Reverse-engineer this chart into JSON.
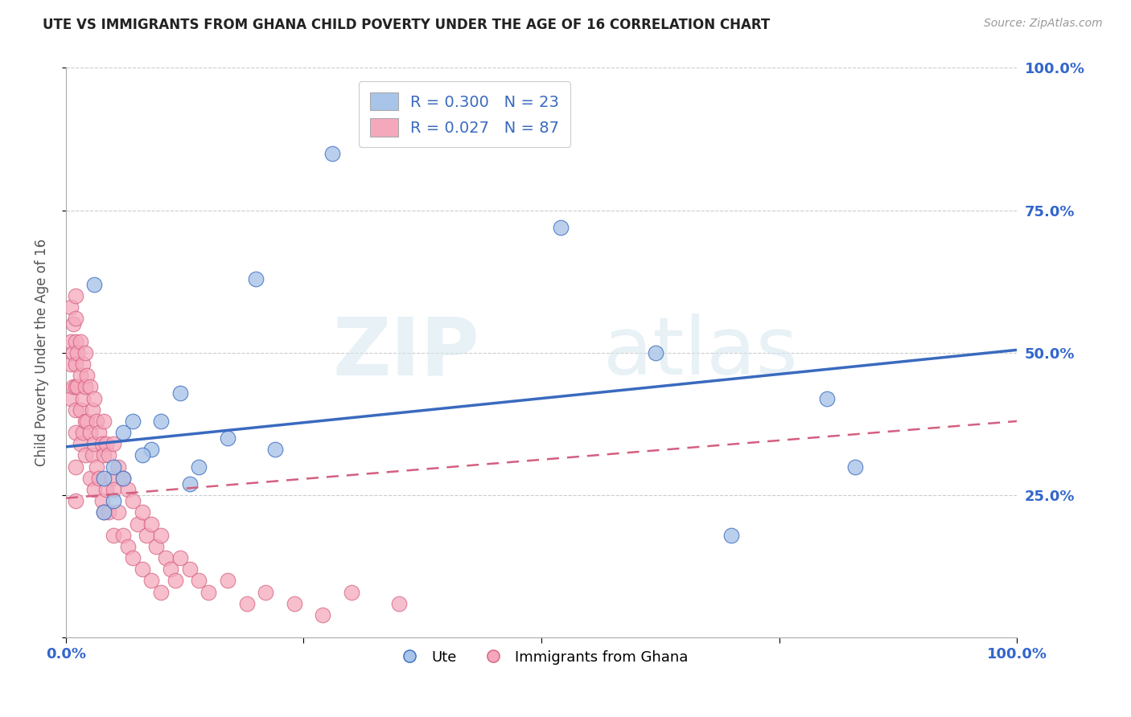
{
  "title": "UTE VS IMMIGRANTS FROM GHANA CHILD POVERTY UNDER THE AGE OF 16 CORRELATION CHART",
  "source": "Source: ZipAtlas.com",
  "ylabel": "Child Poverty Under the Age of 16",
  "watermark_zip": "ZIP",
  "watermark_atlas": "atlas",
  "legend_r1": "R = 0.300   N = 23",
  "legend_r2": "R = 0.027   N = 87",
  "ute_color": "#a8c4e8",
  "ghana_color": "#f5a8bc",
  "ute_line_color": "#3a6abf",
  "ghana_line_color": "#d45f80",
  "ute_scatter_x": [
    0.28,
    0.52,
    0.03,
    0.06,
    0.05,
    0.12,
    0.2,
    0.04,
    0.07,
    0.09,
    0.1,
    0.13,
    0.17,
    0.22,
    0.62,
    0.8,
    0.14,
    0.06,
    0.08,
    0.04,
    0.83,
    0.7,
    0.05
  ],
  "ute_scatter_y": [
    0.85,
    0.72,
    0.62,
    0.36,
    0.3,
    0.43,
    0.63,
    0.28,
    0.38,
    0.33,
    0.38,
    0.27,
    0.35,
    0.33,
    0.5,
    0.42,
    0.3,
    0.28,
    0.32,
    0.22,
    0.3,
    0.18,
    0.24
  ],
  "ghana_scatter_x": [
    0.005,
    0.005,
    0.005,
    0.005,
    0.008,
    0.008,
    0.008,
    0.01,
    0.01,
    0.01,
    0.01,
    0.01,
    0.01,
    0.01,
    0.01,
    0.01,
    0.012,
    0.012,
    0.015,
    0.015,
    0.015,
    0.015,
    0.018,
    0.018,
    0.018,
    0.02,
    0.02,
    0.02,
    0.02,
    0.022,
    0.022,
    0.025,
    0.025,
    0.025,
    0.028,
    0.028,
    0.03,
    0.03,
    0.03,
    0.032,
    0.032,
    0.035,
    0.035,
    0.038,
    0.038,
    0.04,
    0.04,
    0.04,
    0.042,
    0.042,
    0.045,
    0.045,
    0.048,
    0.05,
    0.05,
    0.05,
    0.055,
    0.055,
    0.06,
    0.06,
    0.065,
    0.065,
    0.07,
    0.07,
    0.075,
    0.08,
    0.08,
    0.085,
    0.09,
    0.09,
    0.095,
    0.1,
    0.1,
    0.105,
    0.11,
    0.115,
    0.12,
    0.13,
    0.14,
    0.15,
    0.17,
    0.19,
    0.21,
    0.24,
    0.27,
    0.3,
    0.35
  ],
  "ghana_scatter_y": [
    0.58,
    0.52,
    0.48,
    0.42,
    0.55,
    0.5,
    0.44,
    0.6,
    0.56,
    0.52,
    0.48,
    0.44,
    0.4,
    0.36,
    0.3,
    0.24,
    0.5,
    0.44,
    0.52,
    0.46,
    0.4,
    0.34,
    0.48,
    0.42,
    0.36,
    0.5,
    0.44,
    0.38,
    0.32,
    0.46,
    0.38,
    0.44,
    0.36,
    0.28,
    0.4,
    0.32,
    0.42,
    0.34,
    0.26,
    0.38,
    0.3,
    0.36,
    0.28,
    0.34,
    0.24,
    0.38,
    0.32,
    0.22,
    0.34,
    0.26,
    0.32,
    0.22,
    0.28,
    0.34,
    0.26,
    0.18,
    0.3,
    0.22,
    0.28,
    0.18,
    0.26,
    0.16,
    0.24,
    0.14,
    0.2,
    0.22,
    0.12,
    0.18,
    0.2,
    0.1,
    0.16,
    0.18,
    0.08,
    0.14,
    0.12,
    0.1,
    0.14,
    0.12,
    0.1,
    0.08,
    0.1,
    0.06,
    0.08,
    0.06,
    0.04,
    0.08,
    0.06
  ],
  "ute_trendline_x": [
    0.0,
    1.0
  ],
  "ute_trendline_y": [
    0.335,
    0.505
  ],
  "ghana_trendline_x": [
    0.0,
    1.0
  ],
  "ghana_trendline_y": [
    0.245,
    0.38
  ],
  "xlim": [
    0.0,
    1.0
  ],
  "ylim": [
    0.0,
    1.0
  ],
  "x_ticks": [
    0.0,
    0.25,
    0.5,
    0.75,
    1.0
  ],
  "x_tick_labels": [
    "0.0%",
    "",
    "",
    "",
    "100.0%"
  ],
  "y_ticks": [
    0.0,
    0.25,
    0.5,
    0.75,
    1.0
  ],
  "y_tick_labels_right": [
    "",
    "25.0%",
    "50.0%",
    "75.0%",
    "100.0%"
  ],
  "bg_color": "#ffffff",
  "grid_color": "#cccccc",
  "title_color": "#222222",
  "axis_label_color": "#555555",
  "tick_label_color": "#3366cc"
}
